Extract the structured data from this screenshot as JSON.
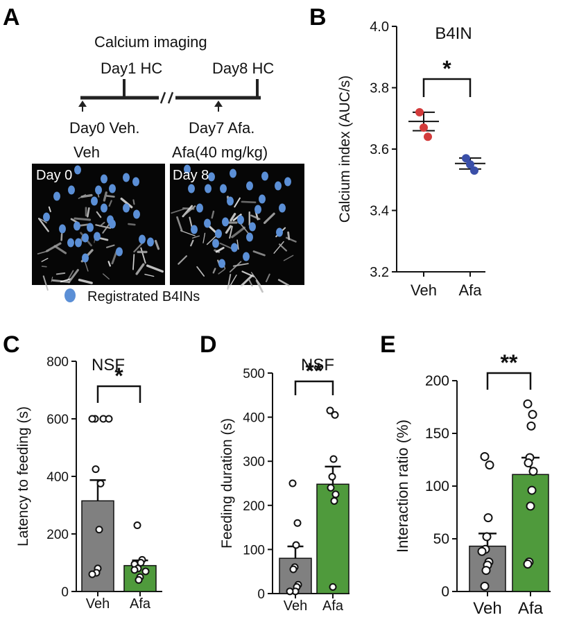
{
  "panel_labels": {
    "a": "A",
    "b": "B",
    "c": "C",
    "d": "D",
    "e": "E"
  },
  "panel_a": {
    "title": "Calcium imaging",
    "top_labels": [
      "Day1 HC",
      "Day8 HC"
    ],
    "bottom_labels": [
      "Day0 Veh.",
      "Day7 Afa."
    ],
    "image_left_caption": "Veh",
    "image_right_caption": "Afa(40 mg/kg)",
    "image_left_label": "Day 0",
    "image_right_label": "Day 8",
    "legend_label": "Registrated B4INs",
    "legend_color": "#5b8fd6"
  },
  "colors": {
    "veh_bar": "#808080",
    "afa_bar": "#4f9a3c",
    "veh_dot": "#d33b3b",
    "afa_dot": "#3a4fa8"
  },
  "chart_data": [
    {
      "id": "B",
      "type": "scatter",
      "title": "B4IN",
      "ylabel": "Calcium index (AUC/s)",
      "xlabel": "",
      "categories": [
        "Veh",
        "Afa"
      ],
      "ylim": [
        3.2,
        4.0
      ],
      "yticks": [
        "3.2",
        "3.4",
        "3.6",
        "3.8",
        "4.0"
      ],
      "means": [
        3.69,
        3.553
      ],
      "sem": [
        0.03,
        0.018
      ],
      "points": [
        [
          3.72,
          3.67,
          3.64
        ],
        [
          3.57,
          3.55,
          3.53
        ]
      ],
      "significance": "*"
    },
    {
      "id": "C",
      "type": "bar",
      "title": "NSF",
      "ylabel": "Latency to feeding (s)",
      "xlabel": "",
      "categories": [
        "Veh",
        "Afa"
      ],
      "ylim": [
        0,
        800
      ],
      "yticks": [
        "0",
        "200",
        "400",
        "600",
        "800"
      ],
      "values": [
        315,
        90
      ],
      "sem": [
        72,
        18
      ],
      "points": [
        [
          600,
          600,
          600,
          600,
          425,
          375,
          215,
          80,
          65,
          60
        ],
        [
          230,
          110,
          100,
          95,
          80,
          75,
          70,
          50,
          40
        ]
      ],
      "significance": "*"
    },
    {
      "id": "D",
      "type": "bar",
      "title": "NSF",
      "ylabel": "Feeding duration (s)",
      "xlabel": "",
      "categories": [
        "Veh",
        "Afa"
      ],
      "ylim": [
        0,
        500
      ],
      "yticks": [
        "0",
        "100",
        "200",
        "300",
        "400",
        "500"
      ],
      "values": [
        80,
        248
      ],
      "sem": [
        27,
        40
      ],
      "points": [
        [
          250,
          160,
          110,
          60,
          55,
          20,
          15,
          5,
          5
        ],
        [
          415,
          405,
          305,
          265,
          240,
          225,
          210,
          15
        ]
      ],
      "significance": "**"
    },
    {
      "id": "E",
      "type": "bar",
      "title": "",
      "ylabel": "Interaction ratio (%)",
      "xlabel": "",
      "categories": [
        "Veh",
        "Afa"
      ],
      "ylim": [
        0,
        200
      ],
      "yticks": [
        "0",
        "50",
        "100",
        "150",
        "200"
      ],
      "values": [
        43,
        111
      ],
      "sem": [
        12,
        16
      ],
      "points": [
        [
          128,
          120,
          70,
          52,
          40,
          38,
          28,
          25,
          20,
          5
        ],
        [
          178,
          168,
          157,
          127,
          122,
          114,
          96,
          81,
          28,
          26
        ]
      ],
      "significance": "**"
    }
  ]
}
